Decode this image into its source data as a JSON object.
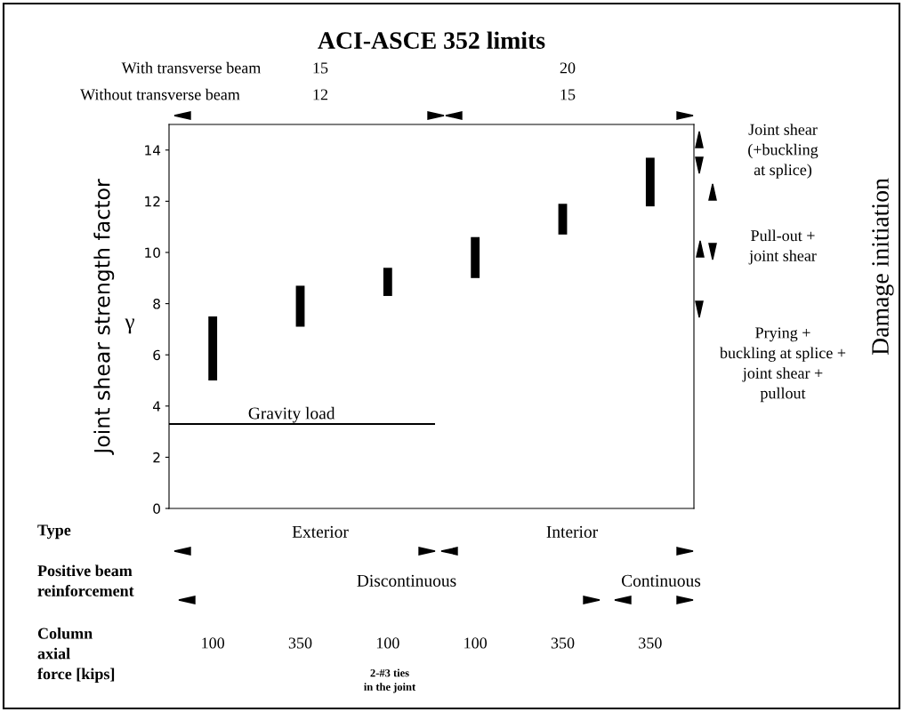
{
  "chart_data": {
    "type": "bar",
    "title": "ACI-ASCE 352 limits",
    "ylabel": "Joint shear strength factor",
    "categories": [
      null,
      null,
      null,
      null,
      null,
      null
    ],
    "series": [
      {
        "color": "#000000",
        "values": [
          2.5,
          1.6,
          1.1,
          1.6,
          1.2,
          1.9
        ],
        "base": [
          5.0,
          7.1,
          8.3,
          9.0,
          10.7,
          11.8
        ]
      }
    ],
    "ylim": [
      0,
      15
    ],
    "yticks": [
      0,
      2,
      4,
      6,
      8,
      10,
      12,
      14
    ],
    "grid": false,
    "legend": false,
    "ref_lines": [
      {
        "axis": "y",
        "value": 3.3,
        "label": "Gravity load",
        "color": "#000000"
      }
    ],
    "annotations": [
      "With transverse beam",
      "15",
      "20",
      "Without transverse beam",
      "12",
      "15",
      "Type",
      "Exterior",
      "Interior",
      "Positive beam\nreinforcement",
      "Discontinuous",
      "Continuous",
      "Column\naxial\nforce [kips]",
      "2-#3 ties\nin the joint",
      "Joint shear\n(+buckling\nat splice)",
      "Pull-out +\njoint shear",
      "Prying +\nbuckling at splice +\njoint shear +\npullout",
      "Damage initiation",
      "γ",
      "100",
      "350",
      "100",
      "100",
      "350",
      "350"
    ]
  }
}
